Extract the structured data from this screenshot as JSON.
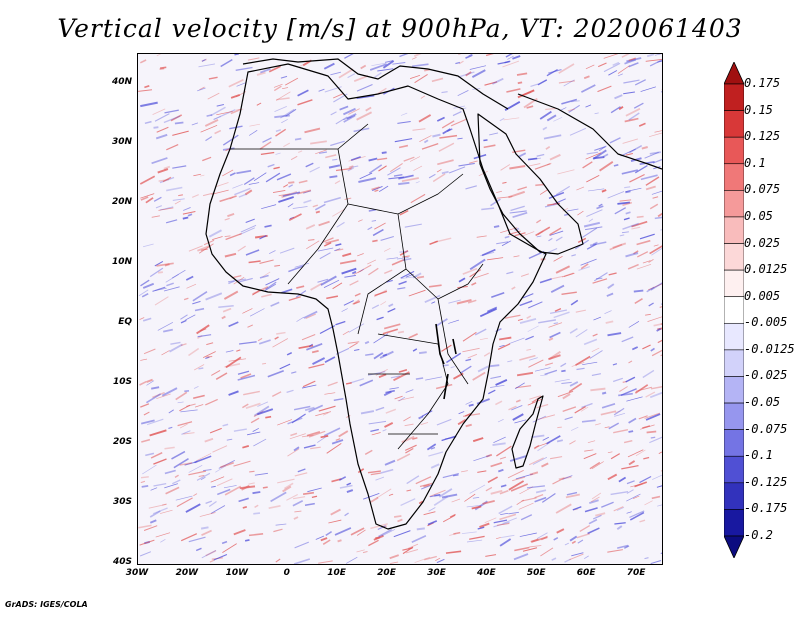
{
  "title": "Vertical velocity [m/s] at 900hPa, VT: 2020061403",
  "credit": "GrADS: IGES/COLA",
  "map": {
    "lon_range": [
      -30,
      75
    ],
    "lat_range": [
      -40,
      45
    ],
    "lat_ticks": [
      {
        "value": 40,
        "label": "40N"
      },
      {
        "value": 30,
        "label": "30N"
      },
      {
        "value": 20,
        "label": "20N"
      },
      {
        "value": 10,
        "label": "10N"
      },
      {
        "value": 0,
        "label": "EQ"
      },
      {
        "value": -10,
        "label": "10S"
      },
      {
        "value": -20,
        "label": "20S"
      },
      {
        "value": -30,
        "label": "30S"
      },
      {
        "value": -40,
        "label": "40S"
      }
    ],
    "lon_ticks": [
      {
        "value": -30,
        "label": "30W"
      },
      {
        "value": -20,
        "label": "20W"
      },
      {
        "value": -10,
        "label": "10W"
      },
      {
        "value": 0,
        "label": "0"
      },
      {
        "value": 10,
        "label": "10E"
      },
      {
        "value": 20,
        "label": "20E"
      },
      {
        "value": 30,
        "label": "30E"
      },
      {
        "value": 40,
        "label": "40E"
      },
      {
        "value": 50,
        "label": "50E"
      },
      {
        "value": 60,
        "label": "60E"
      },
      {
        "value": 70,
        "label": "70E"
      }
    ]
  },
  "colorbar": {
    "labels": [
      "0.175",
      "0.15",
      "0.125",
      "0.1",
      "0.075",
      "0.05",
      "0.025",
      "0.0125",
      "0.005",
      "-0.005",
      "-0.0125",
      "-0.025",
      "-0.05",
      "-0.075",
      "-0.1",
      "-0.125",
      "-0.175",
      "-0.2"
    ],
    "colors": [
      "#a01010",
      "#c02020",
      "#d83838",
      "#e85858",
      "#f07878",
      "#f59a9a",
      "#f9bcbc",
      "#fcd8d8",
      "#fef0f0",
      "#ffffff",
      "#e8e8ff",
      "#d2d2fa",
      "#b4b4f5",
      "#9696ee",
      "#7474e4",
      "#5050d4",
      "#3232bc",
      "#1818a0",
      "#0c0c80"
    ]
  },
  "colors": {
    "pos": "#e05050",
    "neg": "#4848d8",
    "land_outline": "#000000"
  }
}
